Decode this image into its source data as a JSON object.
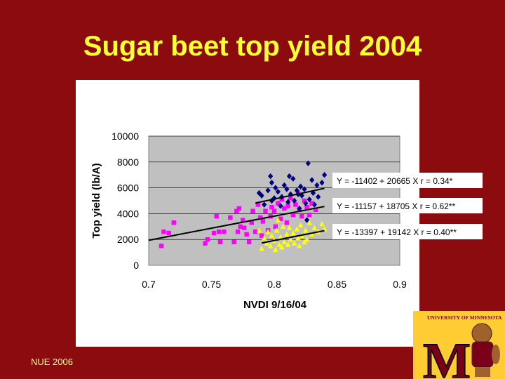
{
  "slide": {
    "title": "Sugar beet top yield 2004",
    "footer": "NUE 2006",
    "logo_text": "UNIVERSITY OF MINNESOTA",
    "logo_letter": "M"
  },
  "colors": {
    "background": "#8b0b0e",
    "title": "#ffff33",
    "plot_area": "#c0c0c0",
    "series_navy": "#000080",
    "series_magenta": "#ff00ff",
    "series_yellow": "#ffff00",
    "trendline": "#000000"
  },
  "chart_data": {
    "type": "scatter",
    "xlabel": "NVDI 9/16/04",
    "ylabel": "Top yield (lb/A)",
    "xlim": [
      0.7,
      0.9
    ],
    "ylim": [
      0,
      10000
    ],
    "xticks": [
      "0.7",
      "0.75",
      "0.8",
      "0.85",
      "0.9"
    ],
    "yticks": [
      "0",
      "2000",
      "4000",
      "6000",
      "8000",
      "10000"
    ],
    "grid": "horizontal",
    "series": [
      {
        "marker": "diamond",
        "color": "#000080",
        "equation": "Y = -11402 + 20665 X  r = 0.34*",
        "trend": {
          "intercept": -11402,
          "slope": 20665,
          "x_range": [
            0.785,
            0.84
          ]
        },
        "points": [
          [
            0.788,
            5600
          ],
          [
            0.79,
            5400
          ],
          [
            0.792,
            4700
          ],
          [
            0.795,
            5800
          ],
          [
            0.797,
            6900
          ],
          [
            0.798,
            6400
          ],
          [
            0.8,
            5200
          ],
          [
            0.801,
            6000
          ],
          [
            0.803,
            5700
          ],
          [
            0.805,
            4600
          ],
          [
            0.806,
            5300
          ],
          [
            0.808,
            6200
          ],
          [
            0.81,
            5900
          ],
          [
            0.811,
            4900
          ],
          [
            0.813,
            5500
          ],
          [
            0.815,
            6700
          ],
          [
            0.816,
            5000
          ],
          [
            0.818,
            5800
          ],
          [
            0.82,
            4400
          ],
          [
            0.821,
            6100
          ],
          [
            0.822,
            5400
          ],
          [
            0.824,
            5900
          ],
          [
            0.825,
            4800
          ],
          [
            0.826,
            3500
          ],
          [
            0.827,
            7900
          ],
          [
            0.828,
            5100
          ],
          [
            0.83,
            6600
          ],
          [
            0.831,
            5600
          ],
          [
            0.832,
            4700
          ],
          [
            0.834,
            6200
          ],
          [
            0.835,
            5300
          ],
          [
            0.838,
            6400
          ],
          [
            0.84,
            7000
          ],
          [
            0.798,
            5000
          ],
          [
            0.812,
            6900
          ],
          [
            0.819,
            5500
          ]
        ]
      },
      {
        "marker": "square",
        "color": "#ff00ff",
        "equation": "Y = -11157 + 18705 X  r = 0.62**",
        "trend": {
          "intercept": -11157,
          "slope": 18705,
          "x_range": [
            0.7,
            0.84
          ]
        },
        "points": [
          [
            0.71,
            1500
          ],
          [
            0.712,
            2600
          ],
          [
            0.716,
            2500
          ],
          [
            0.72,
            3300
          ],
          [
            0.745,
            1700
          ],
          [
            0.747,
            2000
          ],
          [
            0.752,
            2500
          ],
          [
            0.754,
            3800
          ],
          [
            0.756,
            2600
          ],
          [
            0.757,
            1800
          ],
          [
            0.76,
            2600
          ],
          [
            0.765,
            3700
          ],
          [
            0.768,
            1800
          ],
          [
            0.77,
            4200
          ],
          [
            0.771,
            2600
          ],
          [
            0.772,
            4400
          ],
          [
            0.773,
            3000
          ],
          [
            0.775,
            3500
          ],
          [
            0.776,
            2900
          ],
          [
            0.778,
            2400
          ],
          [
            0.78,
            1800
          ],
          [
            0.782,
            3300
          ],
          [
            0.783,
            4200
          ],
          [
            0.785,
            2600
          ],
          [
            0.787,
            4700
          ],
          [
            0.789,
            3700
          ],
          [
            0.79,
            2300
          ],
          [
            0.791,
            3400
          ],
          [
            0.793,
            4200
          ],
          [
            0.795,
            2700
          ],
          [
            0.797,
            3800
          ],
          [
            0.798,
            4500
          ],
          [
            0.8,
            4200
          ],
          [
            0.801,
            3000
          ],
          [
            0.803,
            4800
          ],
          [
            0.805,
            3600
          ],
          [
            0.806,
            5100
          ],
          [
            0.808,
            4400
          ],
          [
            0.81,
            3300
          ],
          [
            0.811,
            4600
          ],
          [
            0.813,
            5200
          ],
          [
            0.815,
            3900
          ],
          [
            0.817,
            4700
          ],
          [
            0.819,
            5600
          ],
          [
            0.82,
            4300
          ],
          [
            0.822,
            3800
          ],
          [
            0.824,
            5000
          ],
          [
            0.826,
            4500
          ],
          [
            0.828,
            3900
          ],
          [
            0.83,
            4800
          ],
          [
            0.833,
            4300
          ]
        ]
      },
      {
        "marker": "triangle",
        "color": "#ffff00",
        "equation": "Y = -13397 + 19142 X  r = 0.40**",
        "trend": {
          "intercept": -13397,
          "slope": 19142,
          "x_range": [
            0.79,
            0.84
          ]
        },
        "points": [
          [
            0.79,
            1300
          ],
          [
            0.792,
            2100
          ],
          [
            0.794,
            1700
          ],
          [
            0.795,
            2600
          ],
          [
            0.797,
            1500
          ],
          [
            0.798,
            2300
          ],
          [
            0.8,
            1900
          ],
          [
            0.801,
            1200
          ],
          [
            0.802,
            2700
          ],
          [
            0.804,
            1600
          ],
          [
            0.805,
            2200
          ],
          [
            0.806,
            1400
          ],
          [
            0.807,
            3000
          ],
          [
            0.808,
            1800
          ],
          [
            0.81,
            2400
          ],
          [
            0.811,
            1600
          ],
          [
            0.812,
            2900
          ],
          [
            0.813,
            2000
          ],
          [
            0.815,
            2500
          ],
          [
            0.816,
            1700
          ],
          [
            0.818,
            2800
          ],
          [
            0.819,
            2100
          ],
          [
            0.82,
            1500
          ],
          [
            0.821,
            3100
          ],
          [
            0.822,
            2300
          ],
          [
            0.824,
            1800
          ],
          [
            0.825,
            2700
          ],
          [
            0.826,
            2000
          ],
          [
            0.828,
            3300
          ],
          [
            0.83,
            2400
          ],
          [
            0.832,
            2900
          ],
          [
            0.835,
            2600
          ],
          [
            0.838,
            3200
          ],
          [
            0.84,
            2800
          ],
          [
            0.788,
            2700
          ],
          [
            0.803,
            3500
          ]
        ]
      }
    ]
  }
}
